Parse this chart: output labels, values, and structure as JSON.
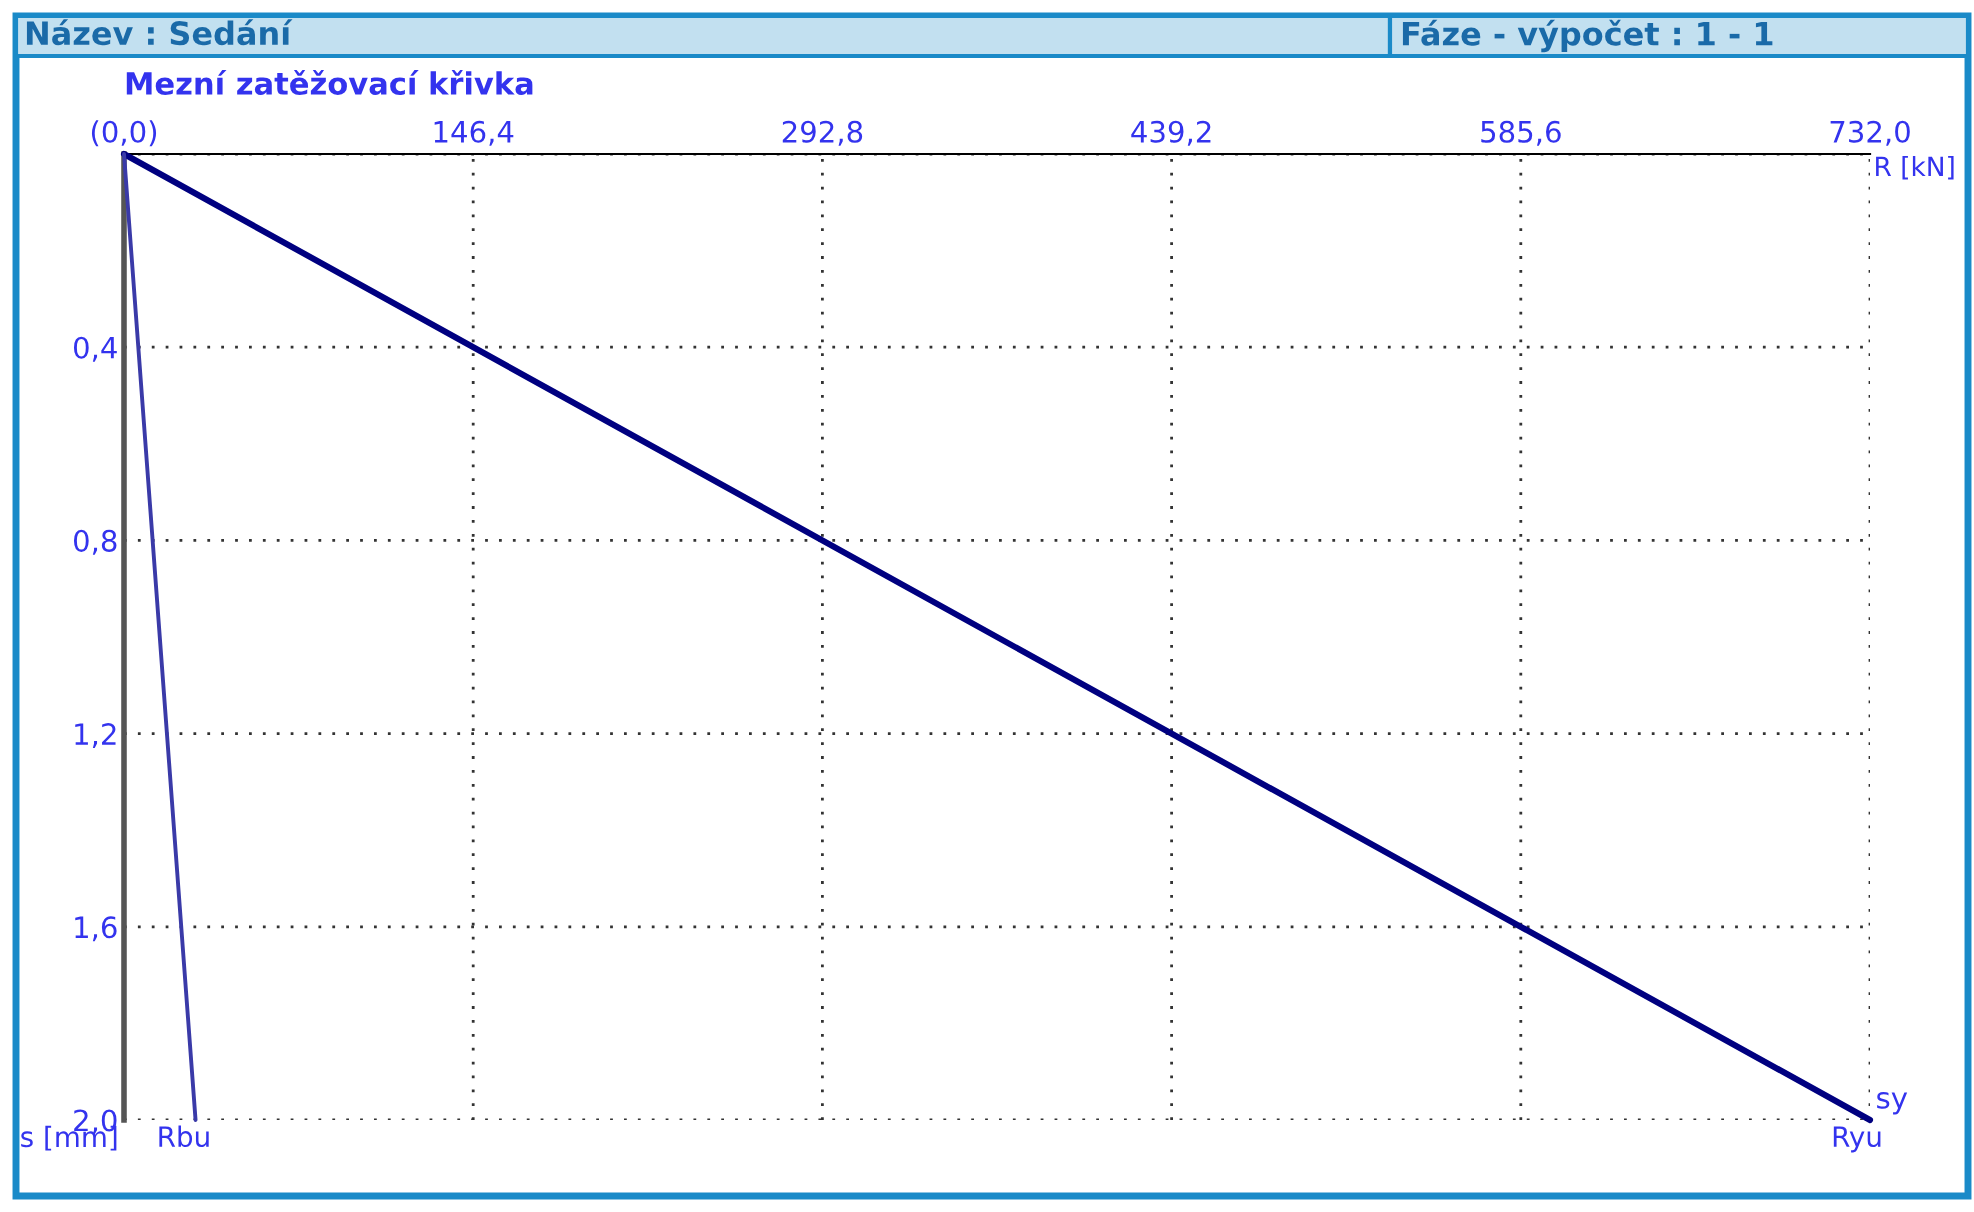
{
  "chart_data": {
    "type": "line",
    "title": "Mezní zatěžovací křivka",
    "xlabel": "R [kN]",
    "ylabel": "s [mm]",
    "annotations": [
      "Název : Sedání",
      "Fáze - výpočet : 1 - 1",
      {
        "text": "sy",
        "x": 732,
        "y": 2.0
      }
    ],
    "series": [
      {
        "name": "Ryu",
        "color": "#000080",
        "x": [
          0,
          732
        ],
        "values": [
          0,
          2.0
        ]
      },
      {
        "name": "Rbu",
        "color": "#3a3aa8",
        "x": [
          0,
          30
        ],
        "values": [
          0,
          2.0
        ]
      }
    ],
    "xlim": [
      0,
      732
    ],
    "ylim": [
      2.0,
      0
    ],
    "xticks": [
      {
        "value": 0,
        "label": "(0,0)"
      },
      {
        "value": 146.4,
        "label": "146,4"
      },
      {
        "value": 292.8,
        "label": "292,8"
      },
      {
        "value": 439.2,
        "label": "439,2"
      },
      {
        "value": 585.6,
        "label": "585,6"
      },
      {
        "value": 732,
        "label": "732,0"
      }
    ],
    "yticks": [
      {
        "value": 0,
        "label": null
      },
      {
        "value": 0.4,
        "label": "0,4"
      },
      {
        "value": 0.8,
        "label": "0,8"
      },
      {
        "value": 1.2,
        "label": "1,2"
      },
      {
        "value": 1.6,
        "label": "1,6"
      },
      {
        "value": 2.0,
        "label": "2,0"
      }
    ],
    "grid": true,
    "line_style": "solid",
    "marker": "none",
    "legend": false
  }
}
